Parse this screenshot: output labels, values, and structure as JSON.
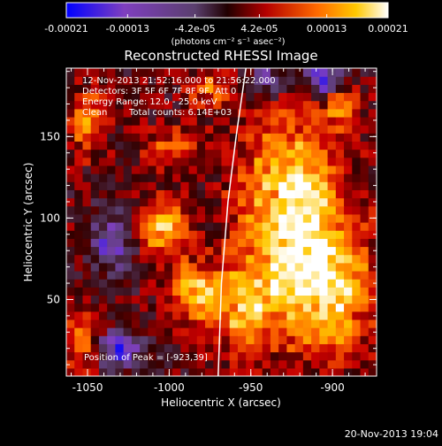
{
  "chart_data": {
    "type": "heatmap",
    "title": "Reconstructed RHESSI Image",
    "xlabel": "Heliocentric X (arcsec)",
    "ylabel": "Heliocentric Y (arcsec)",
    "xlim": [
      -1063,
      -873
    ],
    "ylim": [
      3,
      192
    ],
    "x_ticks": [
      -1050,
      -1000,
      -950,
      -900
    ],
    "x_tick_labels": [
      "-1050",
      "-1000",
      "-950",
      "-900"
    ],
    "y_ticks": [
      50,
      100,
      150
    ],
    "y_tick_labels": [
      "50",
      "100",
      "150"
    ],
    "colorbar": {
      "min": -0.00021,
      "max": 0.00021,
      "ticks": [
        -0.00021,
        -0.00013,
        -4.2e-05,
        4.2e-05,
        0.00013,
        0.00021
      ],
      "tick_labels": [
        "-0.00021",
        "-0.00013",
        "-4.2e-05",
        "4.2e-05",
        "0.00013",
        "0.00021"
      ],
      "unit_label": "(photons cm⁻² s⁻¹ asec⁻²)"
    },
    "annotations": {
      "time_range": "12-Nov-2013 21:52:16.000 to 21:56:22.000",
      "detectors": "Detectors: 3F 5F 6F 7F 8F 9F, Att 0",
      "energy": "Energy Range: 12.0 - 25.0 keV",
      "method": "Clean",
      "counts": "Total counts: 6.14E+03",
      "peak": "Position of Peak = [-923,39]"
    },
    "limb_curve": [
      [
        -970,
        3
      ],
      [
        -968,
        60
      ],
      [
        -964,
        110
      ],
      [
        -959,
        150
      ],
      [
        -953,
        192
      ]
    ],
    "grid": false,
    "colormap": [
      "#0000ff",
      "#7f3fbf",
      "#5a3f6e",
      "#330000",
      "#c80000",
      "#ff6a00",
      "#ffc800",
      "#ffffff"
    ],
    "grid_cols": 38,
    "grid_rows": 38,
    "hot_regions": [
      {
        "x": -925,
        "y": 110,
        "sx": 22,
        "sy": 35,
        "amp": 1.0
      },
      {
        "x": -905,
        "y": 55,
        "sx": 20,
        "sy": 25,
        "amp": 0.95
      },
      {
        "x": -1005,
        "y": 95,
        "sx": 10,
        "sy": 12,
        "amp": 0.85
      },
      {
        "x": -985,
        "y": 55,
        "sx": 10,
        "sy": 12,
        "amp": 0.8
      },
      {
        "x": -955,
        "y": 45,
        "sx": 14,
        "sy": 20,
        "amp": 0.75
      },
      {
        "x": -1050,
        "y": 160,
        "sx": 8,
        "sy": 14,
        "amp": 0.55
      },
      {
        "x": -1000,
        "y": 145,
        "sx": 12,
        "sy": 8,
        "amp": 0.45
      },
      {
        "x": -1055,
        "y": 25,
        "sx": 8,
        "sy": 12,
        "amp": 0.6
      },
      {
        "x": -975,
        "y": 178,
        "sx": 10,
        "sy": 8,
        "amp": 0.45
      },
      {
        "x": -895,
        "y": 170,
        "sx": 8,
        "sy": 10,
        "amp": 0.5
      }
    ],
    "cold_regions": [
      {
        "x": -905,
        "y": 185,
        "sx": 8,
        "sy": 8,
        "amp": 0.8
      },
      {
        "x": -1035,
        "y": 85,
        "sx": 10,
        "sy": 12,
        "amp": 0.6
      },
      {
        "x": -1030,
        "y": 20,
        "sx": 10,
        "sy": 8,
        "amp": 0.7
      },
      {
        "x": -940,
        "y": 185,
        "sx": 8,
        "sy": 8,
        "amp": 0.5
      }
    ]
  },
  "footer": {
    "timestamp": "20-Nov-2013 19:04"
  }
}
